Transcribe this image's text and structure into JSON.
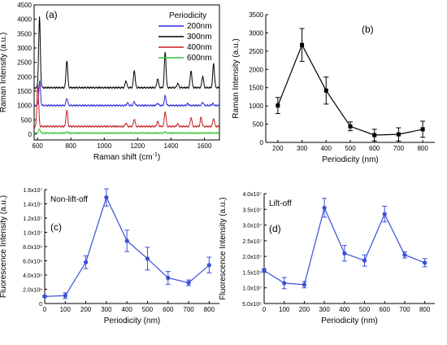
{
  "chart_data": [
    {
      "id": "a",
      "panel_label": "(a)",
      "type": "line",
      "xlabel": "Raman shift (cm",
      "xlabel_sup": "-1",
      "xlabel_end": ")",
      "ylabel": "Raman Intensity (a.u.)",
      "xlim": [
        580,
        1690
      ],
      "ylim": [
        -200,
        4500
      ],
      "xticks": [
        600,
        800,
        1000,
        1200,
        1400,
        1600
      ],
      "yticks": [
        0,
        500,
        1000,
        1500,
        2000,
        2500,
        3000,
        3500,
        4000,
        4500
      ],
      "legend_title": "Periodicity",
      "legend_position": "top-right",
      "series": [
        {
          "name": "200nm",
          "color": "#2a2adf",
          "baseline": 1000,
          "peaks": [
            [
              613,
              850
            ],
            [
              776,
              250
            ],
            [
              1140,
              90
            ],
            [
              1180,
              130
            ],
            [
              1320,
              80
            ],
            [
              1365,
              330
            ],
            [
              1500,
              60
            ],
            [
              1590,
              110
            ],
            [
              1650,
              60
            ]
          ]
        },
        {
          "name": "300nm",
          "color": "#000000",
          "baseline": 1620,
          "peaks": [
            [
              612,
              2450
            ],
            [
              776,
              950
            ],
            [
              1130,
              250
            ],
            [
              1180,
              600
            ],
            [
              1320,
              320
            ],
            [
              1365,
              1250
            ],
            [
              1440,
              150
            ],
            [
              1520,
              600
            ],
            [
              1590,
              400
            ],
            [
              1655,
              850
            ]
          ]
        },
        {
          "name": "400nm",
          "color": "#c81e1e",
          "baseline": 270,
          "peaks": [
            [
              602,
              1480
            ],
            [
              776,
              560
            ],
            [
              1130,
              120
            ],
            [
              1180,
              260
            ],
            [
              1320,
              170
            ],
            [
              1365,
              520
            ],
            [
              1440,
              90
            ],
            [
              1520,
              320
            ],
            [
              1580,
              320
            ],
            [
              1655,
              280
            ]
          ]
        },
        {
          "name": "600nm",
          "color": "#38c438",
          "baseline": 40,
          "peaks": [
            [
              612,
              140
            ],
            [
              776,
              40
            ],
            [
              1365,
              40
            ]
          ]
        }
      ]
    },
    {
      "id": "b",
      "panel_label": "(b)",
      "type": "line",
      "xlabel": "Periodicity (nm)",
      "ylabel": "Raman Intensity (a.u.)",
      "xlim": [
        150,
        850
      ],
      "ylim": [
        0,
        3500
      ],
      "xticks": [
        200,
        300,
        400,
        500,
        600,
        700,
        800
      ],
      "yticks": [
        0,
        500,
        1000,
        1500,
        2000,
        2500,
        3000,
        3500
      ],
      "color": "#000000",
      "x": [
        200,
        300,
        400,
        500,
        600,
        700,
        800
      ],
      "y": [
        1010,
        2670,
        1420,
        440,
        200,
        220,
        360
      ],
      "err": [
        220,
        450,
        370,
        120,
        160,
        180,
        220
      ]
    },
    {
      "id": "c",
      "panel_label": "(c)",
      "annotation": "Non-lift-off",
      "type": "line",
      "xlabel": "Periodicity (nm)",
      "ylabel": "Fluorescence Intensity (a.u.)",
      "xlim": [
        0,
        850
      ],
      "ylim": [
        0,
        16000000
      ],
      "xticks": [
        0,
        100,
        200,
        300,
        400,
        500,
        600,
        700,
        800
      ],
      "yticks": [
        0,
        2000000,
        4000000,
        6000000,
        8000000,
        10000000,
        12000000,
        14000000,
        16000000
      ],
      "ytick_labels": [
        "0",
        "2.0x10⁶",
        "4.0x10⁶",
        "6.0x10⁶",
        "8.0x10⁶",
        "1.0x10⁷",
        "1.2x10⁷",
        "1.4x10⁷",
        "1.6x10⁷"
      ],
      "color": "#3a4fd8",
      "x": [
        0,
        100,
        200,
        300,
        400,
        500,
        600,
        700,
        800
      ],
      "y": [
        1000000,
        1100000,
        5800000,
        14900000,
        8800000,
        6300000,
        3600000,
        2900000,
        5400000
      ],
      "err": [
        100000,
        400000,
        900000,
        1200000,
        1500000,
        1600000,
        900000,
        400000,
        1100000
      ]
    },
    {
      "id": "d",
      "panel_label": "(d)",
      "annotation": "Lift-off",
      "type": "line",
      "xlabel": "Periodicity (nm)",
      "ylabel": "Fluorescence Intensity (a.u.)",
      "xlim": [
        0,
        850
      ],
      "ylim": [
        5000000,
        40000000
      ],
      "xticks": [
        0,
        100,
        200,
        300,
        400,
        500,
        600,
        700,
        800
      ],
      "yticks": [
        5000000,
        10000000,
        15000000,
        20000000,
        25000000,
        30000000,
        35000000,
        40000000
      ],
      "ytick_labels": [
        "5.0x10⁶",
        "1.0x10⁷",
        "1.5x10⁷",
        "2.0x10⁷",
        "2.5x10⁷",
        "3.0x10⁷",
        "3.5x10⁷",
        "4.0x10⁷"
      ],
      "color": "#3a4fd8",
      "x": [
        0,
        100,
        200,
        300,
        400,
        500,
        600,
        700,
        800
      ],
      "y": [
        15500000,
        11500000,
        11000000,
        35500000,
        21000000,
        18700000,
        33500000,
        20500000,
        18000000
      ],
      "err": [
        600000,
        1800000,
        1000000,
        3000000,
        2500000,
        1800000,
        2500000,
        1000000,
        1300000
      ]
    }
  ]
}
